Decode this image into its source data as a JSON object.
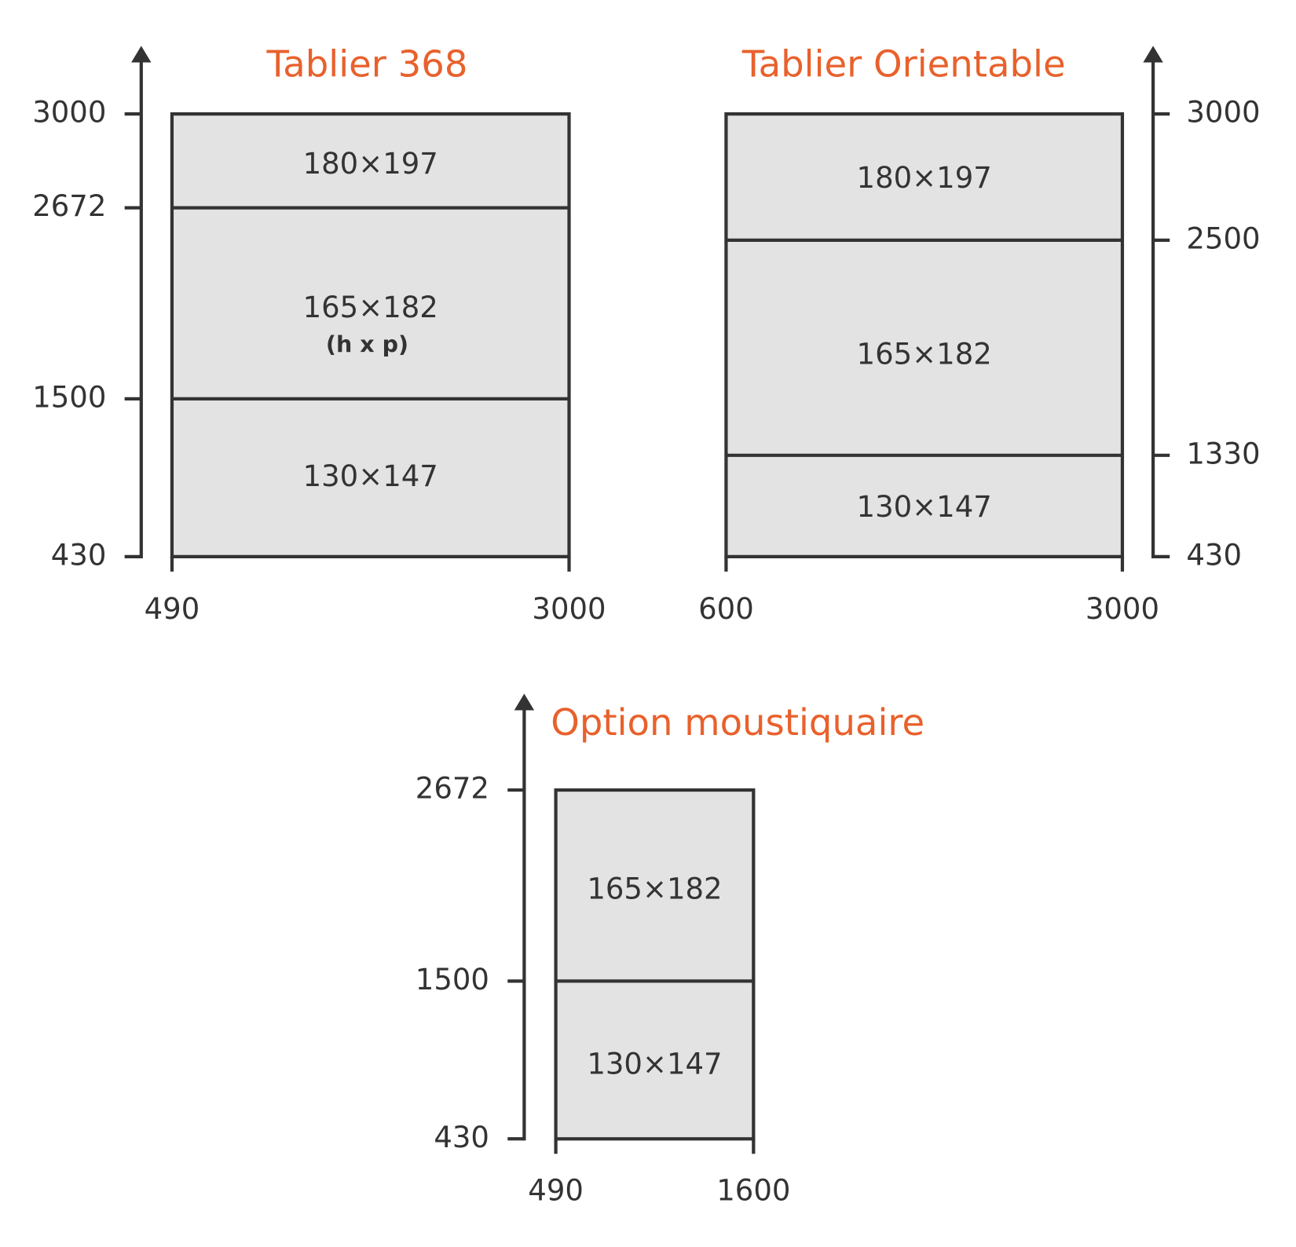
{
  "panels": [
    {
      "title": "Tablier 368",
      "y_labels": [
        3000,
        2672,
        1500,
        430
      ],
      "x_labels": [
        490,
        3000
      ],
      "zones": [
        {
          "label": "180×197"
        },
        {
          "label": "165×182",
          "note": "(h x p)"
        },
        {
          "label": "130×147"
        }
      ]
    },
    {
      "title": "Tablier Orientable",
      "y_labels": [
        3000,
        2500,
        1330,
        430
      ],
      "x_labels": [
        600,
        3000
      ],
      "zones": [
        {
          "label": "180×197"
        },
        {
          "label": "165×182"
        },
        {
          "label": "130×147"
        }
      ]
    },
    {
      "title": "Option moustiquaire",
      "y_labels": [
        2672,
        1500,
        430
      ],
      "x_labels": [
        490,
        1600
      ],
      "zones": [
        {
          "label": "165×182"
        },
        {
          "label": "130×147"
        }
      ]
    }
  ]
}
